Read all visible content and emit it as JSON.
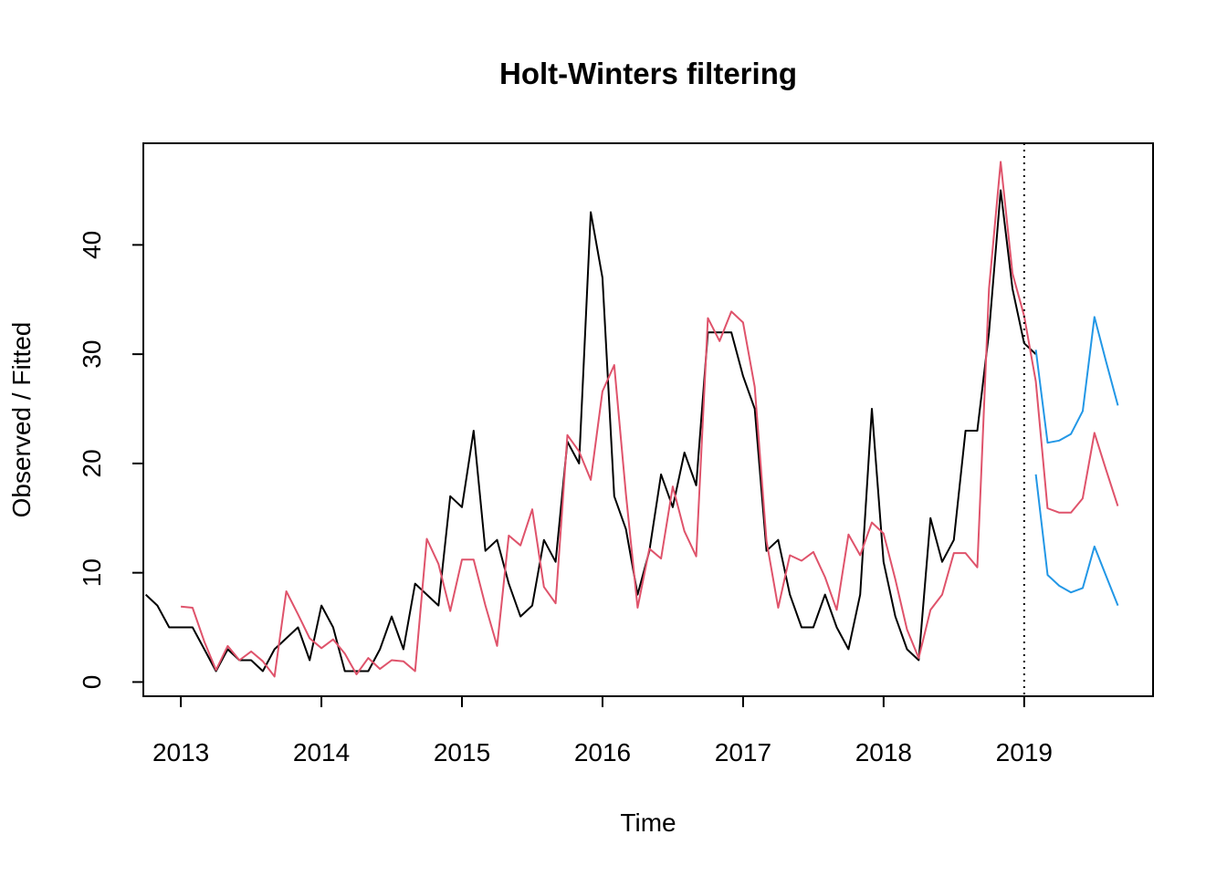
{
  "chart_data": {
    "type": "line",
    "title": "Holt-Winters filtering",
    "xlabel": "Time",
    "ylabel": "Observed / Fitted",
    "xlim": [
      2012.733,
      2019.917
    ],
    "ylim": [
      -1.3,
      49.3
    ],
    "x_ticks": [
      2013,
      2014,
      2015,
      2016,
      2017,
      2018,
      2019
    ],
    "x_tick_labels": [
      "2013",
      "2014",
      "2015",
      "2016",
      "2017",
      "2018",
      "2019"
    ],
    "y_ticks": [
      0,
      10,
      20,
      30,
      40
    ],
    "y_tick_labels": [
      "0",
      "10",
      "20",
      "30",
      "40"
    ],
    "vline_x": 2019,
    "x_step": 0.08333,
    "grid": false,
    "legend": "none",
    "series": [
      {
        "color": "#000000",
        "x_start": 2012.75,
        "values": [
          8,
          7,
          5,
          5,
          5,
          3,
          1,
          3,
          2,
          2,
          1,
          3,
          4,
          5,
          2,
          7,
          5,
          1,
          1,
          1,
          3,
          6,
          3,
          9,
          8,
          7,
          17,
          16,
          23,
          12,
          13,
          9,
          6,
          7,
          13,
          11,
          22,
          20,
          43,
          37,
          17,
          14,
          8,
          12,
          19,
          16,
          21,
          18,
          32,
          32,
          32,
          28,
          25,
          12,
          13,
          8,
          5,
          5,
          8,
          5,
          3,
          8,
          25,
          11,
          6,
          3,
          2,
          15,
          11,
          13,
          23,
          23,
          32,
          45,
          36,
          31,
          30
        ]
      },
      {
        "color": "#DF536B",
        "x_start": 2013.0,
        "values": [
          6.9,
          6.8,
          3.7,
          1.1,
          3.3,
          2.0,
          2.8,
          1.9,
          0.5,
          8.3,
          6.2,
          4.0,
          3.1,
          3.9,
          2.6,
          0.7,
          2.2,
          1.2,
          2.0,
          1.9,
          1.0,
          13.1,
          10.8,
          6.5,
          11.2,
          11.2,
          7.0,
          3.3,
          13.4,
          12.5,
          15.8,
          8.7,
          7.2,
          22.6,
          21.1,
          18.5,
          26.6,
          29.0,
          17.2,
          6.8,
          12.2,
          11.3,
          17.9,
          13.8,
          11.5,
          33.3,
          31.2,
          33.9,
          32.9,
          27.0,
          12.9,
          6.8,
          11.6,
          11.1,
          11.9,
          9.6,
          6.6,
          13.5,
          11.6,
          14.6,
          13.6,
          9.4,
          4.8,
          2.2,
          6.6,
          8.0,
          11.8,
          11.8,
          10.5,
          36.0,
          47.6,
          37.4,
          33.5,
          27.5,
          15.9,
          15.5,
          15.5,
          16.8,
          22.8,
          19.4,
          16.1
        ]
      },
      {
        "color": "#2297E6",
        "x_start": 2019.0833,
        "values": [
          30.4,
          21.9,
          22.1,
          22.7,
          24.8,
          33.4,
          29.3,
          25.3
        ]
      },
      {
        "color": "#2297E6",
        "x_start": 2019.0833,
        "values": [
          19.0,
          9.8,
          8.8,
          8.2,
          8.6,
          12.4,
          9.7,
          7.0
        ]
      }
    ]
  }
}
